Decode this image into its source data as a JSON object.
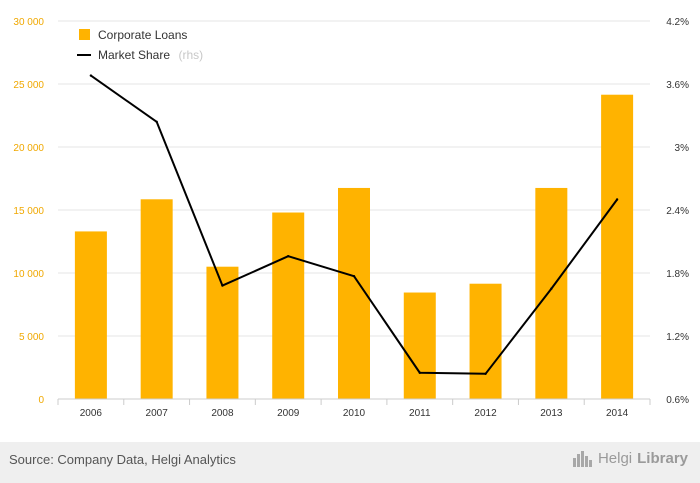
{
  "chart_data": {
    "type": "bar+line",
    "categories": [
      "2006",
      "2007",
      "2008",
      "2009",
      "2010",
      "2011",
      "2012",
      "2013",
      "2014"
    ],
    "series": [
      {
        "name": "Corporate Loans",
        "axis": "left",
        "kind": "bar",
        "values": [
          13300,
          15850,
          10500,
          14800,
          16750,
          8450,
          9150,
          16750,
          24150
        ]
      },
      {
        "name": "Market Share",
        "name_suffix": "(rhs)",
        "axis": "right",
        "kind": "line",
        "values": [
          3.68,
          3.24,
          1.68,
          1.96,
          1.77,
          0.85,
          0.84,
          1.65,
          2.5
        ]
      }
    ],
    "left_axis": {
      "min": 0,
      "max": 30000,
      "ticks": [
        "0",
        "5 000",
        "10 000",
        "15 000",
        "20 000",
        "25 000",
        "30 000"
      ]
    },
    "right_axis": {
      "min": 0.6,
      "max": 4.2,
      "ticks": [
        "0.6%",
        "1.2%",
        "1.8%",
        "2.4%",
        "3%",
        "3.6%",
        "4.2%"
      ]
    },
    "legend_position": "top-left",
    "grid": true
  },
  "colors": {
    "bar": "#ffb300",
    "line": "#000000",
    "left_tick": "#f0a800"
  },
  "footer": {
    "source": "Source: Company Data, Helgi Analytics",
    "brand_light": "Helgi",
    "brand_bold": "Library"
  }
}
